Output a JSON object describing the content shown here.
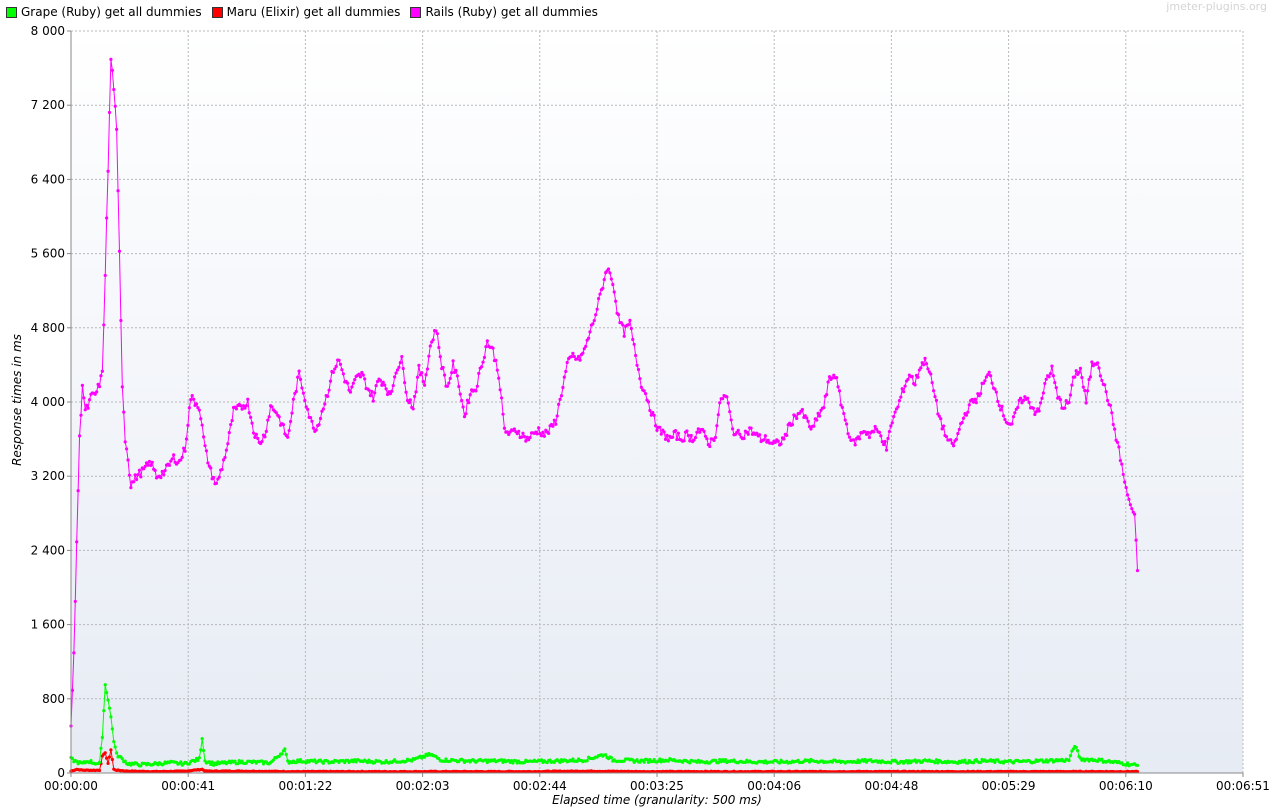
{
  "watermark": "jmeter-plugins.org",
  "legend": [
    {
      "label": "Grape (Ruby) get all dummies",
      "color": "#00ff00"
    },
    {
      "label": "Maru (Elixir) get all dummies",
      "color": "#ff0000"
    },
    {
      "label": "Rails (Ruby) get all dummies",
      "color": "#ff00ff"
    }
  ],
  "chart_data": {
    "type": "line",
    "xlabel": "Elapsed time (granularity: 500 ms)",
    "ylabel": "Response times in ms",
    "ylim": [
      0,
      8000
    ],
    "xlim_seconds": [
      0,
      411
    ],
    "y_ticks": [
      0,
      800,
      1600,
      2400,
      3200,
      4000,
      4800,
      5600,
      6400,
      7200,
      8000
    ],
    "y_tick_labels": [
      "0",
      "800",
      "1 600",
      "2 400",
      "3 200",
      "4 000",
      "4 800",
      "5 600",
      "6 400",
      "7 200",
      "8 000"
    ],
    "x_tick_labels": [
      "00:00:00",
      "00:00:41",
      "00:01:22",
      "00:02:03",
      "00:02:44",
      "00:03:25",
      "00:04:06",
      "00:04:48",
      "00:05:29",
      "00:06:10",
      "00:06:51"
    ],
    "grid": true,
    "legend_position": "top-left",
    "series": [
      {
        "name": "Rails (Ruby) get all dummies",
        "color": "#ff00ff",
        "anchors": [
          [
            0,
            550
          ],
          [
            1,
            1250
          ],
          [
            2,
            2500
          ],
          [
            3,
            3600
          ],
          [
            4,
            4200
          ],
          [
            5,
            3900
          ],
          [
            6,
            3950
          ],
          [
            7,
            4050
          ],
          [
            9,
            4100
          ],
          [
            11,
            4300
          ],
          [
            12,
            5400
          ],
          [
            13,
            6500
          ],
          [
            14,
            7700
          ],
          [
            15,
            7400
          ],
          [
            16,
            6900
          ],
          [
            17,
            5600
          ],
          [
            18,
            4200
          ],
          [
            19,
            3600
          ],
          [
            20,
            3400
          ],
          [
            21,
            3100
          ],
          [
            23,
            3200
          ],
          [
            25,
            3250
          ],
          [
            28,
            3350
          ],
          [
            30,
            3200
          ],
          [
            33,
            3250
          ],
          [
            36,
            3400
          ],
          [
            38,
            3350
          ],
          [
            40,
            3500
          ],
          [
            42,
            4050
          ],
          [
            45,
            3950
          ],
          [
            47,
            3500
          ],
          [
            49,
            3250
          ],
          [
            51,
            3100
          ],
          [
            53,
            3300
          ],
          [
            55,
            3550
          ],
          [
            57,
            3900
          ],
          [
            60,
            3950
          ],
          [
            62,
            4000
          ],
          [
            64,
            3700
          ],
          [
            66,
            3550
          ],
          [
            68,
            3650
          ],
          [
            70,
            3950
          ],
          [
            72,
            3900
          ],
          [
            74,
            3750
          ],
          [
            76,
            3600
          ],
          [
            78,
            4000
          ],
          [
            80,
            4300
          ],
          [
            82,
            4050
          ],
          [
            84,
            3800
          ],
          [
            86,
            3700
          ],
          [
            88,
            3900
          ],
          [
            90,
            4100
          ],
          [
            92,
            4350
          ],
          [
            94,
            4450
          ],
          [
            96,
            4250
          ],
          [
            98,
            4100
          ],
          [
            100,
            4250
          ],
          [
            102,
            4300
          ],
          [
            104,
            4150
          ],
          [
            106,
            4050
          ],
          [
            108,
            4250
          ],
          [
            110,
            4200
          ],
          [
            112,
            4050
          ],
          [
            114,
            4350
          ],
          [
            116,
            4450
          ],
          [
            118,
            4050
          ],
          [
            120,
            3950
          ],
          [
            122,
            4350
          ],
          [
            124,
            4200
          ],
          [
            126,
            4600
          ],
          [
            128,
            4800
          ],
          [
            130,
            4400
          ],
          [
            132,
            4150
          ],
          [
            134,
            4400
          ],
          [
            136,
            4200
          ],
          [
            138,
            3850
          ],
          [
            140,
            4100
          ],
          [
            142,
            4150
          ],
          [
            144,
            4400
          ],
          [
            146,
            4650
          ],
          [
            148,
            4550
          ],
          [
            150,
            4300
          ],
          [
            152,
            3700
          ],
          [
            154,
            3650
          ],
          [
            156,
            3700
          ],
          [
            158,
            3650
          ],
          [
            160,
            3600
          ],
          [
            162,
            3650
          ],
          [
            164,
            3700
          ],
          [
            166,
            3650
          ],
          [
            168,
            3700
          ],
          [
            170,
            3800
          ],
          [
            172,
            4100
          ],
          [
            174,
            4400
          ],
          [
            176,
            4500
          ],
          [
            178,
            4450
          ],
          [
            180,
            4550
          ],
          [
            182,
            4750
          ],
          [
            184,
            4950
          ],
          [
            186,
            5200
          ],
          [
            188,
            5450
          ],
          [
            190,
            5300
          ],
          [
            192,
            4900
          ],
          [
            194,
            4750
          ],
          [
            196,
            4850
          ],
          [
            198,
            4500
          ],
          [
            200,
            4200
          ],
          [
            202,
            4050
          ],
          [
            204,
            3850
          ],
          [
            206,
            3700
          ],
          [
            208,
            3650
          ],
          [
            210,
            3600
          ],
          [
            212,
            3650
          ],
          [
            214,
            3600
          ],
          [
            216,
            3650
          ],
          [
            218,
            3600
          ],
          [
            220,
            3700
          ],
          [
            222,
            3650
          ],
          [
            224,
            3550
          ],
          [
            226,
            3650
          ],
          [
            228,
            4050
          ],
          [
            230,
            4050
          ],
          [
            232,
            3700
          ],
          [
            234,
            3650
          ],
          [
            236,
            3650
          ],
          [
            238,
            3700
          ],
          [
            240,
            3650
          ],
          [
            242,
            3600
          ],
          [
            244,
            3600
          ],
          [
            246,
            3550
          ],
          [
            248,
            3550
          ],
          [
            250,
            3600
          ],
          [
            252,
            3750
          ],
          [
            254,
            3850
          ],
          [
            256,
            3900
          ],
          [
            258,
            3800
          ],
          [
            260,
            3700
          ],
          [
            262,
            3850
          ],
          [
            264,
            3950
          ],
          [
            266,
            4250
          ],
          [
            268,
            4300
          ],
          [
            270,
            4000
          ],
          [
            272,
            3750
          ],
          [
            274,
            3550
          ],
          [
            276,
            3600
          ],
          [
            278,
            3700
          ],
          [
            280,
            3650
          ],
          [
            282,
            3700
          ],
          [
            284,
            3650
          ],
          [
            286,
            3500
          ],
          [
            288,
            3800
          ],
          [
            290,
            3950
          ],
          [
            292,
            4150
          ],
          [
            294,
            4300
          ],
          [
            296,
            4200
          ],
          [
            298,
            4400
          ],
          [
            300,
            4450
          ],
          [
            302,
            4200
          ],
          [
            304,
            3900
          ],
          [
            306,
            3700
          ],
          [
            308,
            3550
          ],
          [
            310,
            3550
          ],
          [
            312,
            3750
          ],
          [
            314,
            3900
          ],
          [
            316,
            4000
          ],
          [
            318,
            4050
          ],
          [
            320,
            4200
          ],
          [
            322,
            4300
          ],
          [
            324,
            4150
          ],
          [
            326,
            3950
          ],
          [
            328,
            3800
          ],
          [
            330,
            3750
          ],
          [
            332,
            3950
          ],
          [
            334,
            4050
          ],
          [
            336,
            4000
          ],
          [
            338,
            3900
          ],
          [
            340,
            3950
          ],
          [
            342,
            4250
          ],
          [
            344,
            4350
          ],
          [
            346,
            4050
          ],
          [
            348,
            3950
          ],
          [
            350,
            4000
          ],
          [
            352,
            4300
          ],
          [
            354,
            4350
          ],
          [
            356,
            4000
          ],
          [
            358,
            4400
          ],
          [
            360,
            4450
          ],
          [
            362,
            4200
          ],
          [
            364,
            4000
          ],
          [
            366,
            3700
          ],
          [
            368,
            3400
          ],
          [
            370,
            3050
          ],
          [
            372,
            2850
          ],
          [
            373,
            2750
          ],
          [
            374,
            2200
          ]
        ]
      },
      {
        "name": "Grape (Ruby) get all dummies",
        "color": "#00ff00",
        "anchors": [
          [
            0,
            150
          ],
          [
            2,
            120
          ],
          [
            4,
            100
          ],
          [
            6,
            130
          ],
          [
            8,
            110
          ],
          [
            10,
            100
          ],
          [
            11,
            400
          ],
          [
            12,
            950
          ],
          [
            13,
            800
          ],
          [
            14,
            600
          ],
          [
            15,
            350
          ],
          [
            16,
            200
          ],
          [
            18,
            150
          ],
          [
            20,
            100
          ],
          [
            25,
            90
          ],
          [
            30,
            100
          ],
          [
            35,
            110
          ],
          [
            40,
            100
          ],
          [
            45,
            150
          ],
          [
            46,
            380
          ],
          [
            47,
            130
          ],
          [
            50,
            100
          ],
          [
            60,
            120
          ],
          [
            70,
            110
          ],
          [
            75,
            250
          ],
          [
            76,
            120
          ],
          [
            80,
            130
          ],
          [
            90,
            120
          ],
          [
            100,
            130
          ],
          [
            110,
            120
          ],
          [
            120,
            140
          ],
          [
            126,
            200
          ],
          [
            130,
            140
          ],
          [
            140,
            130
          ],
          [
            150,
            130
          ],
          [
            160,
            120
          ],
          [
            170,
            130
          ],
          [
            180,
            140
          ],
          [
            187,
            200
          ],
          [
            190,
            140
          ],
          [
            200,
            130
          ],
          [
            210,
            140
          ],
          [
            220,
            120
          ],
          [
            230,
            130
          ],
          [
            240,
            120
          ],
          [
            250,
            120
          ],
          [
            260,
            130
          ],
          [
            270,
            120
          ],
          [
            280,
            130
          ],
          [
            290,
            120
          ],
          [
            300,
            130
          ],
          [
            310,
            120
          ],
          [
            320,
            130
          ],
          [
            330,
            120
          ],
          [
            340,
            130
          ],
          [
            350,
            140
          ],
          [
            352,
            300
          ],
          [
            354,
            150
          ],
          [
            360,
            140
          ],
          [
            365,
            120
          ],
          [
            370,
            100
          ],
          [
            374,
            80
          ]
        ]
      },
      {
        "name": "Maru (Elixir) get all dummies",
        "color": "#ff0000",
        "anchors": [
          [
            0,
            20
          ],
          [
            2,
            40
          ],
          [
            4,
            30
          ],
          [
            6,
            30
          ],
          [
            8,
            30
          ],
          [
            10,
            30
          ],
          [
            11,
            180
          ],
          [
            12,
            220
          ],
          [
            13,
            100
          ],
          [
            14,
            250
          ],
          [
            15,
            40
          ],
          [
            16,
            30
          ],
          [
            20,
            20
          ],
          [
            30,
            15
          ],
          [
            40,
            20
          ],
          [
            46,
            40
          ],
          [
            47,
            20
          ],
          [
            60,
            20
          ],
          [
            80,
            15
          ],
          [
            100,
            15
          ],
          [
            120,
            15
          ],
          [
            140,
            15
          ],
          [
            160,
            15
          ],
          [
            180,
            20
          ],
          [
            200,
            15
          ],
          [
            220,
            15
          ],
          [
            240,
            15
          ],
          [
            260,
            15
          ],
          [
            280,
            15
          ],
          [
            300,
            15
          ],
          [
            320,
            15
          ],
          [
            340,
            15
          ],
          [
            360,
            15
          ],
          [
            374,
            15
          ]
        ]
      }
    ]
  }
}
